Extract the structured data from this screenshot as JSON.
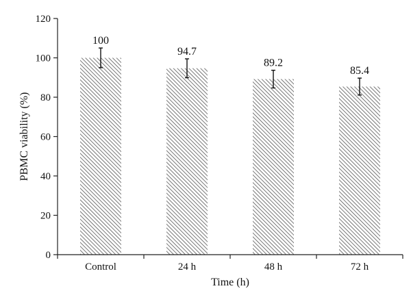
{
  "chart_data": {
    "type": "bar",
    "title": "",
    "xlabel": "Time (h)",
    "ylabel": "PBMC viability (%)",
    "categories": [
      "Control",
      "24 h",
      "48 h",
      "72 h"
    ],
    "values": [
      100,
      94.7,
      89.2,
      85.4
    ],
    "data_labels": [
      "100",
      "94.7",
      "89.2",
      "85.4"
    ],
    "error": [
      5,
      4.8,
      4.5,
      4.3
    ],
    "ylim": [
      0,
      120
    ],
    "yticks": [
      0,
      20,
      40,
      60,
      80,
      100,
      120
    ],
    "ytick_labels": [
      "0",
      "20",
      "40",
      "60",
      "80",
      "100",
      "120"
    ],
    "grid": false,
    "legend": "none",
    "bar_fill": "diagonal-hatch",
    "colors": {
      "hatch": "#555555",
      "axis": "#222222"
    }
  }
}
